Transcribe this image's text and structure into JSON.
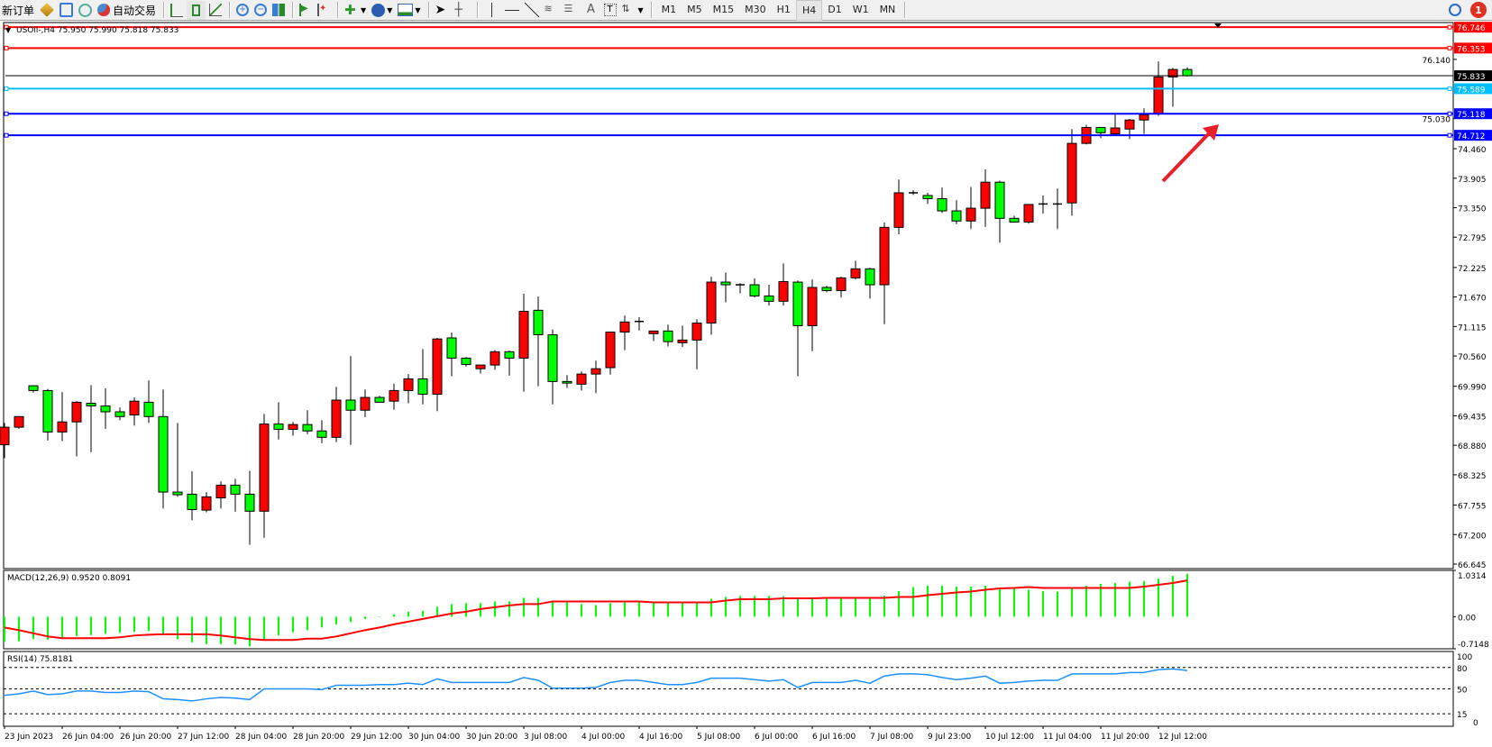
{
  "toolbar": {
    "new_order": "新订单",
    "auto_trading": "自动交易",
    "timeframes": [
      "M1",
      "M5",
      "M15",
      "M30",
      "H1",
      "H4",
      "D1",
      "W1",
      "MN"
    ],
    "active_timeframe": "H4",
    "notification_count": "1",
    "icons": [
      "new-order-icon",
      "market-watch-icon",
      "navigator-icon",
      "signals-icon",
      "auto-trading-icon",
      "bar-chart-icon",
      "candlestick-icon",
      "line-chart-icon",
      "zoom-in-icon",
      "zoom-out-icon",
      "tile-windows-icon",
      "chart-shift-icon",
      "autoscroll-icon",
      "indicators-icon",
      "periods-icon",
      "templates-icon",
      "cursor-icon",
      "crosshair-icon",
      "vertical-line-icon",
      "horizontal-line-icon",
      "trendline-icon",
      "fibonacci-icon",
      "text-icon",
      "label-icon",
      "arrows-icon",
      "search-icon",
      "notification-icon"
    ]
  },
  "chart_header": "USOil-,H4  75.950 75.990 75.818 75.833",
  "colors": {
    "bull": "#ff0000",
    "bear": "#00ff00",
    "macd_hist": "#00ff00",
    "macd_signal": "#ff0000",
    "rsi": "#1e90ff",
    "arrow": "#e8202a"
  },
  "chart_data": [
    {
      "type": "candlestick",
      "symbol": "USOil-",
      "timeframe": "H4",
      "ylim": [
        66.56,
        76.8
      ],
      "y_ticks": [
        "76.140",
        "75.030",
        "74.460",
        "73.905",
        "73.350",
        "72.795",
        "72.225",
        "71.670",
        "71.115",
        "70.560",
        "69.990",
        "69.435",
        "68.880",
        "68.325",
        "67.755",
        "67.200",
        "66.645"
      ],
      "x_tick_labels": [
        "23 Jun 2023",
        "26 Jun 04:00",
        "26 Jun 20:00",
        "27 Jun 12:00",
        "28 Jun 04:00",
        "28 Jun 20:00",
        "29 Jun 12:00",
        "30 Jun 04:00",
        "30 Jun 20:00",
        "3 Jul 08:00",
        "4 Jul 00:00",
        "4 Jul 16:00",
        "5 Jul 08:00",
        "6 Jul 00:00",
        "6 Jul 16:00",
        "7 Jul 08:00",
        "9 Jul 23:00",
        "10 Jul 12:00",
        "11 Jul 04:00",
        "11 Jul 20:00",
        "12 Jul 12:00"
      ],
      "ohlc": [
        [
          68.89,
          69.3,
          68.64,
          69.22
        ],
        [
          69.22,
          69.42,
          69.19,
          69.42
        ],
        [
          70.0,
          70.01,
          69.87,
          69.91
        ],
        [
          69.91,
          69.94,
          68.97,
          69.13
        ],
        [
          69.13,
          69.88,
          68.96,
          69.32
        ],
        [
          69.32,
          69.71,
          68.67,
          69.69
        ],
        [
          69.67,
          70.01,
          68.75,
          69.62
        ],
        [
          69.62,
          69.95,
          69.19,
          69.51
        ],
        [
          69.51,
          69.59,
          69.35,
          69.42
        ],
        [
          69.45,
          69.78,
          69.25,
          69.71
        ],
        [
          69.69,
          70.1,
          69.3,
          69.42
        ],
        [
          69.42,
          69.93,
          67.69,
          68.0
        ],
        [
          68.0,
          69.3,
          67.91,
          67.95
        ],
        [
          67.96,
          68.39,
          67.47,
          67.67
        ],
        [
          67.66,
          68.0,
          67.62,
          67.91
        ],
        [
          67.89,
          68.2,
          67.69,
          68.13
        ],
        [
          68.13,
          68.25,
          67.63,
          67.96
        ],
        [
          67.96,
          68.4,
          67.01,
          67.64
        ],
        [
          67.64,
          69.47,
          67.14,
          69.28
        ],
        [
          69.28,
          69.69,
          68.99,
          69.18
        ],
        [
          69.18,
          69.32,
          69.06,
          69.27
        ],
        [
          69.27,
          69.54,
          69.09,
          69.15
        ],
        [
          69.15,
          69.35,
          68.92,
          69.03
        ],
        [
          69.03,
          69.98,
          68.94,
          69.73
        ],
        [
          69.73,
          70.56,
          68.89,
          69.54
        ],
        [
          69.54,
          69.93,
          69.41,
          69.78
        ],
        [
          69.78,
          69.81,
          69.69,
          69.69
        ],
        [
          69.71,
          70.04,
          69.55,
          69.91
        ],
        [
          69.91,
          70.22,
          69.67,
          70.13
        ],
        [
          70.13,
          70.69,
          69.65,
          69.84
        ],
        [
          69.84,
          70.9,
          69.52,
          70.88
        ],
        [
          70.9,
          71.0,
          70.18,
          70.52
        ],
        [
          70.52,
          70.54,
          70.36,
          70.4
        ],
        [
          70.32,
          70.39,
          70.23,
          70.39
        ],
        [
          70.39,
          70.67,
          70.3,
          70.64
        ],
        [
          70.64,
          70.66,
          70.19,
          70.52
        ],
        [
          70.52,
          71.73,
          69.89,
          71.4
        ],
        [
          71.42,
          71.68,
          69.99,
          70.96
        ],
        [
          70.96,
          71.06,
          69.65,
          70.08
        ],
        [
          70.08,
          70.2,
          69.96,
          70.05
        ],
        [
          70.03,
          70.27,
          69.91,
          70.22
        ],
        [
          70.22,
          70.47,
          69.86,
          70.32
        ],
        [
          70.34,
          71.01,
          70.21,
          71.01
        ],
        [
          71.01,
          71.32,
          70.67,
          71.2
        ],
        [
          71.21,
          71.29,
          71.04,
          71.21
        ],
        [
          70.98,
          71.03,
          70.84,
          71.03
        ],
        [
          71.03,
          71.15,
          70.74,
          70.83
        ],
        [
          70.81,
          71.13,
          70.73,
          70.86
        ],
        [
          70.86,
          71.25,
          70.31,
          71.18
        ],
        [
          71.18,
          72.05,
          70.96,
          71.95
        ],
        [
          71.95,
          72.13,
          71.57,
          71.9
        ],
        [
          71.9,
          71.93,
          71.74,
          71.9
        ],
        [
          71.9,
          72.02,
          71.66,
          71.69
        ],
        [
          71.69,
          71.9,
          71.51,
          71.59
        ],
        [
          71.59,
          72.3,
          71.51,
          71.96
        ],
        [
          71.95,
          71.98,
          70.18,
          71.13
        ],
        [
          71.13,
          72.0,
          70.65,
          71.85
        ],
        [
          71.85,
          71.88,
          71.76,
          71.79
        ],
        [
          71.79,
          72.05,
          71.66,
          72.03
        ],
        [
          72.03,
          72.35,
          72.0,
          72.2
        ],
        [
          72.2,
          72.22,
          71.64,
          71.9
        ],
        [
          71.9,
          73.07,
          71.16,
          72.98
        ],
        [
          72.98,
          73.88,
          72.85,
          73.63
        ],
        [
          73.63,
          73.68,
          73.59,
          73.63
        ],
        [
          73.58,
          73.63,
          73.42,
          73.52
        ],
        [
          73.52,
          73.73,
          73.25,
          73.29
        ],
        [
          73.29,
          73.49,
          73.04,
          73.1
        ],
        [
          73.1,
          73.74,
          72.95,
          73.34
        ],
        [
          73.34,
          74.07,
          72.99,
          73.83
        ],
        [
          73.83,
          73.86,
          72.69,
          73.15
        ],
        [
          73.15,
          73.2,
          73.07,
          73.08
        ],
        [
          73.08,
          73.42,
          73.05,
          73.41
        ],
        [
          73.42,
          73.58,
          73.24,
          73.42
        ],
        [
          73.42,
          73.71,
          72.95,
          73.42
        ],
        [
          73.44,
          74.83,
          73.2,
          74.56
        ],
        [
          74.56,
          74.91,
          74.54,
          74.86
        ],
        [
          74.86,
          74.86,
          74.66,
          74.76
        ],
        [
          74.74,
          75.1,
          74.73,
          74.85
        ],
        [
          74.83,
          75.02,
          74.64,
          75.0
        ],
        [
          75.0,
          75.22,
          74.74,
          75.1
        ],
        [
          75.12,
          76.1,
          75.08,
          75.81
        ],
        [
          75.81,
          75.98,
          75.25,
          75.95
        ],
        [
          75.95,
          75.99,
          75.818,
          75.833
        ]
      ],
      "horizontal_levels": [
        {
          "price": "76.746",
          "color": "#ff0000"
        },
        {
          "price": "76.353",
          "color": "#ff0000"
        },
        {
          "price": "75.833",
          "color": "#000000"
        },
        {
          "price": "75.589",
          "color": "#00bfff"
        },
        {
          "price": "75.118",
          "color": "#0000ff"
        },
        {
          "price": "74.712",
          "color": "#0000ff"
        }
      ]
    },
    {
      "type": "bar+line",
      "label": "MACD(12,26,9) 0.9520 0.8091",
      "ylim": [
        -0.7148,
        1.0314
      ],
      "y_ticks": [
        "1.0314",
        "0.00",
        "-0.7148"
      ],
      "histogram": [
        -0.56,
        -0.55,
        -0.5,
        -0.51,
        -0.48,
        -0.43,
        -0.41,
        -0.38,
        -0.36,
        -0.34,
        -0.32,
        -0.38,
        -0.5,
        -0.57,
        -0.61,
        -0.61,
        -0.62,
        -0.66,
        -0.51,
        -0.42,
        -0.35,
        -0.3,
        -0.24,
        -0.17,
        -0.12,
        -0.05,
        -0.01,
        0.05,
        0.11,
        0.13,
        0.22,
        0.28,
        0.3,
        0.3,
        0.34,
        0.34,
        0.42,
        0.42,
        0.35,
        0.34,
        0.28,
        0.26,
        0.3,
        0.32,
        0.32,
        0.32,
        0.3,
        0.3,
        0.3,
        0.4,
        0.44,
        0.46,
        0.46,
        0.46,
        0.46,
        0.41,
        0.41,
        0.41,
        0.44,
        0.44,
        0.44,
        0.47,
        0.57,
        0.66,
        0.69,
        0.69,
        0.67,
        0.67,
        0.69,
        0.63,
        0.63,
        0.6,
        0.57,
        0.56,
        0.62,
        0.69,
        0.73,
        0.75,
        0.78,
        0.79,
        0.85,
        0.91,
        0.952
      ],
      "signal": [
        -0.24,
        -0.3,
        -0.37,
        -0.44,
        -0.48,
        -0.48,
        -0.48,
        -0.48,
        -0.46,
        -0.42,
        -0.4,
        -0.39,
        -0.39,
        -0.39,
        -0.39,
        -0.42,
        -0.46,
        -0.5,
        -0.52,
        -0.52,
        -0.52,
        -0.49,
        -0.49,
        -0.44,
        -0.37,
        -0.3,
        -0.24,
        -0.17,
        -0.11,
        -0.05,
        0.01,
        0.07,
        0.11,
        0.17,
        0.21,
        0.25,
        0.28,
        0.28,
        0.34,
        0.34,
        0.34,
        0.34,
        0.34,
        0.34,
        0.34,
        0.32,
        0.32,
        0.32,
        0.32,
        0.32,
        0.36,
        0.39,
        0.39,
        0.39,
        0.41,
        0.41,
        0.41,
        0.42,
        0.42,
        0.42,
        0.42,
        0.42,
        0.44,
        0.44,
        0.48,
        0.51,
        0.54,
        0.56,
        0.6,
        0.63,
        0.64,
        0.66,
        0.64,
        0.64,
        0.64,
        0.64,
        0.64,
        0.64,
        0.64,
        0.67,
        0.71,
        0.75,
        0.809
      ]
    },
    {
      "type": "line",
      "label": "RSI(14) 75.8181",
      "ylim": [
        0,
        100
      ],
      "y_ticks": [
        "100",
        "80",
        "50",
        "15",
        "0"
      ],
      "levels": [
        80,
        50,
        15
      ],
      "values": [
        41,
        43,
        47,
        42,
        43,
        47,
        47,
        45,
        45,
        47,
        46,
        36,
        35,
        33,
        36,
        38,
        37,
        35,
        50,
        50,
        50,
        50,
        49,
        55,
        55,
        55,
        56,
        56,
        58,
        56,
        64,
        59,
        59,
        59,
        59,
        59,
        66,
        62,
        51,
        51,
        51,
        52,
        59,
        62,
        62,
        59,
        56,
        56,
        59,
        65,
        65,
        65,
        63,
        61,
        63,
        52,
        59,
        59,
        59,
        62,
        58,
        68,
        71,
        71,
        70,
        66,
        63,
        65,
        68,
        58,
        59,
        61,
        62,
        62,
        71,
        71,
        71,
        71,
        73,
        73,
        77,
        78,
        75.8181
      ]
    }
  ]
}
